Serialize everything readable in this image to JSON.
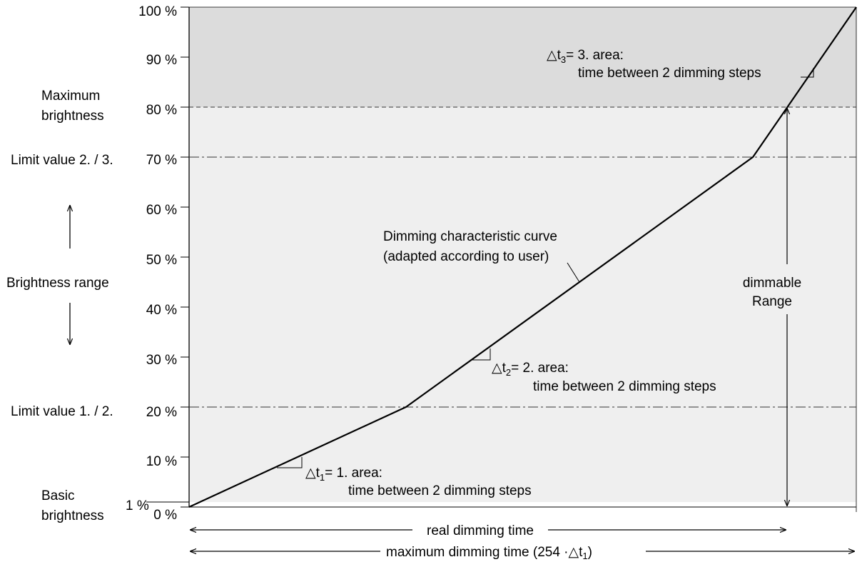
{
  "chart_data": {
    "type": "line",
    "title": "",
    "xlabel": "",
    "ylabel": "",
    "ylim": [
      0,
      100
    ],
    "y_ticks": [
      "0 %",
      "10 %",
      "20 %",
      "30 %",
      "40 %",
      "50 %",
      "60 %",
      "70 %",
      "80 %",
      "90 %",
      "100 %"
    ],
    "series": [
      {
        "x": [
          0,
          0.325,
          0.845,
          1.0
        ],
        "y": [
          0,
          20,
          70,
          100
        ]
      }
    ],
    "reference_lines": [
      {
        "y": 80,
        "style": "dashed"
      },
      {
        "y": 70,
        "style": "dash-dot"
      },
      {
        "y": 20,
        "style": "dash-dot"
      }
    ],
    "shaded_regions": [
      {
        "from": 80,
        "to": 100,
        "color": "#dcdcdc"
      },
      {
        "from": 1,
        "to": 80,
        "color": "#efefef"
      }
    ]
  },
  "left_labels": {
    "max_brightness_1": "Maximum",
    "max_brightness_2": "brightness",
    "limit_2_3": "Limit value 2. / 3.",
    "brightness_range": "Brightness range",
    "limit_1_2": "Limit value 1. / 2.",
    "basic_brightness_1": "Basic",
    "basic_brightness_2": "brightness",
    "one_percent": "1 %"
  },
  "annotations": {
    "curve_1": "Dimming characteristic curve",
    "curve_2": "(adapted according to user)",
    "dimmable_1": "dimmable",
    "dimmable_2": "Range",
    "dt_symbol": "△t",
    "dt1_sub": "1",
    "dt1_rest": "= 1. area:",
    "dt2_sub": "2",
    "dt2_rest": "= 2. area:",
    "dt3_sub": "3",
    "dt3_rest": "= 3. area:",
    "step_time": "time between 2 dimming steps",
    "real_time": "real dimming time",
    "max_time": "maximum dimming time (254 ·△t",
    "max_time_sub": "1",
    "max_time_close": ")"
  },
  "colors": {
    "upper_area": "#dcdcdc",
    "lower_area": "#efefef",
    "line": "#000000"
  }
}
